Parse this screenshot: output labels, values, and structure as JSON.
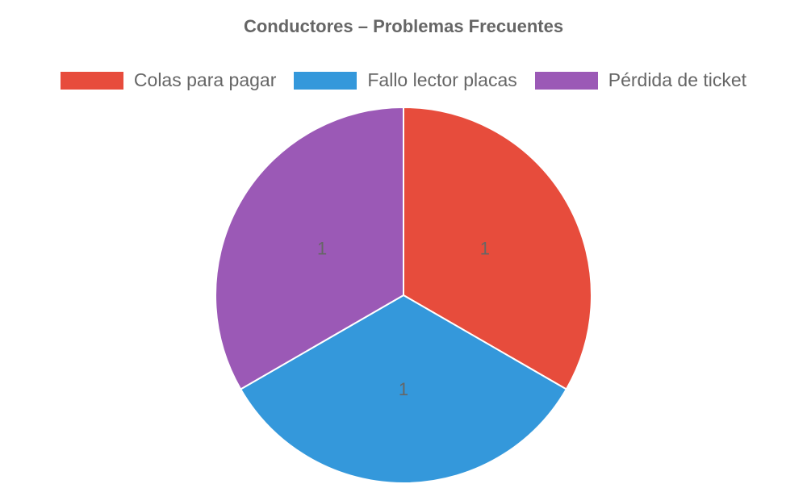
{
  "chart_data": {
    "type": "pie",
    "title": "Conductores – Problemas Frecuentes",
    "categories": [
      "Colas para pagar",
      "Fallo lector placas",
      "Pérdida de ticket"
    ],
    "values": [
      1,
      1,
      1
    ],
    "colors": [
      "#e74c3c",
      "#3498db",
      "#9b59b6"
    ],
    "data_labels": [
      "1",
      "1",
      "1"
    ],
    "legend_position": "top"
  }
}
